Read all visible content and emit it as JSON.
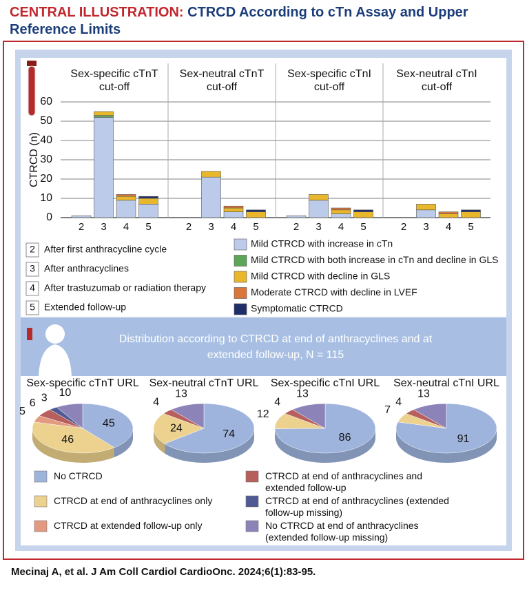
{
  "header": {
    "label": "CENTRAL ILLUSTRATION:",
    "title": "CTRCD According to cTn Assay and Upper Reference Limits"
  },
  "chart_data": [
    {
      "type": "bar",
      "stacked": true,
      "ylabel": "CTRCD (n)",
      "ylim": [
        0,
        60
      ],
      "yticks": [
        0,
        10,
        20,
        30,
        40,
        50,
        60
      ],
      "grid": true,
      "panels": [
        "Sex-specific cTnT cut-off",
        "Sex-neutral cTnT cut-off",
        "Sex-specific cTnI cut-off",
        "Sex-neutral cTnI cut-off"
      ],
      "categories": [
        "2",
        "3",
        "4",
        "5"
      ],
      "category_descriptions": [
        "After first anthracycline cycle",
        "After anthracyclines",
        "After trastuzumab or radiation therapy",
        "Extended follow-up"
      ],
      "series": [
        {
          "name": "Mild CTRCD with increase in cTn",
          "color": "#bccbe9",
          "values": [
            [
              1,
              52,
              9,
              7
            ],
            [
              0,
              21,
              3,
              0
            ],
            [
              1,
              9,
              2,
              0
            ],
            [
              0,
              4,
              0,
              0
            ]
          ]
        },
        {
          "name": "Mild CTRCD with both increase in cTn and decline in GLS",
          "color": "#5ea55a",
          "values": [
            [
              0,
              1,
              0,
              0
            ],
            [
              0,
              0,
              0,
              0
            ],
            [
              0,
              0,
              0,
              0
            ],
            [
              0,
              0,
              0,
              0
            ]
          ]
        },
        {
          "name": "Mild CTRCD with decline in GLS",
          "color": "#e8b72c",
          "values": [
            [
              0,
              2,
              2,
              3
            ],
            [
              0,
              3,
              2,
              3
            ],
            [
              0,
              3,
              2,
              3
            ],
            [
              0,
              3,
              2,
              3
            ]
          ]
        },
        {
          "name": "Moderate CTRCD with decline in LVEF",
          "color": "#d9773a",
          "values": [
            [
              0,
              0,
              1,
              0
            ],
            [
              0,
              0,
              1,
              0
            ],
            [
              0,
              0,
              1,
              0
            ],
            [
              0,
              0,
              1,
              0
            ]
          ]
        },
        {
          "name": "Symptomatic CTRCD",
          "color": "#1f2d6b",
          "values": [
            [
              0,
              0,
              0,
              1
            ],
            [
              0,
              0,
              0,
              1
            ],
            [
              0,
              0,
              0,
              1
            ],
            [
              0,
              0,
              0,
              1
            ]
          ]
        }
      ]
    },
    {
      "type": "pie",
      "title": "Distribution according to CTRCD at end of anthracyclines and at extended follow-up, N = 115",
      "categories": [
        "No CTRCD",
        "CTRCD at end of anthracyclines only",
        "CTRCD at extended follow-up only",
        "CTRCD at end of anthracyclines and extended follow-up",
        "CTRCD at end of anthracyclines (extended follow-up missing)",
        "No CTRCD at end of anthracyclines (extended follow-up missing)"
      ],
      "colors": [
        "#9fb4dd",
        "#ecd28e",
        "#e39a80",
        "#b65f5c",
        "#4f5993",
        "#8c83b9"
      ],
      "pies": [
        {
          "title": "Sex-specific cTnT URL",
          "values": [
            45,
            46,
            5,
            6,
            3,
            10
          ]
        },
        {
          "title": "Sex-neutral cTnT URL",
          "values": [
            74,
            24,
            null,
            4,
            null,
            13
          ]
        },
        {
          "title": "Sex-specific cTnI URL",
          "values": [
            86,
            12,
            null,
            4,
            null,
            13
          ]
        },
        {
          "title": "Sex-neutral cTnI URL",
          "values": [
            91,
            7,
            null,
            4,
            null,
            13
          ]
        }
      ]
    }
  ],
  "footer": "Mecinaj A, et al. J Am Coll Cardiol CardioOnc. 2024;6(1):83-95."
}
